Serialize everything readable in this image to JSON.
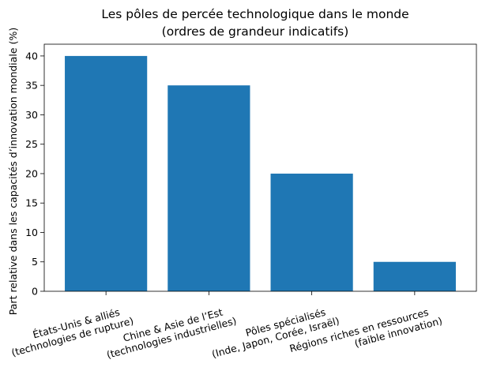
{
  "chart_data": {
    "type": "bar",
    "title": [
      "Les pôles de percée technologique dans le monde",
      "(ordres de grandeur indicatifs)"
    ],
    "xlabel": "",
    "ylabel": "Part relative dans les capacités d’innovation mondiale (%)",
    "ylim": [
      0,
      42
    ],
    "yticks": [
      0,
      5,
      10,
      15,
      20,
      25,
      30,
      35,
      40
    ],
    "categories": [
      [
        "États-Unis & alliés",
        "(technologies de rupture)"
      ],
      [
        "Chine & Asie de l’Est",
        "(technologies industrielles)"
      ],
      [
        "Pôles spécialisés",
        "(Inde, Japon, Corée, Israël)"
      ],
      [
        "Régions riches en ressources",
        "(faible innovation)"
      ]
    ],
    "values": [
      40,
      35,
      20,
      5
    ],
    "bar_color": "#1f77b4",
    "grid": false
  }
}
